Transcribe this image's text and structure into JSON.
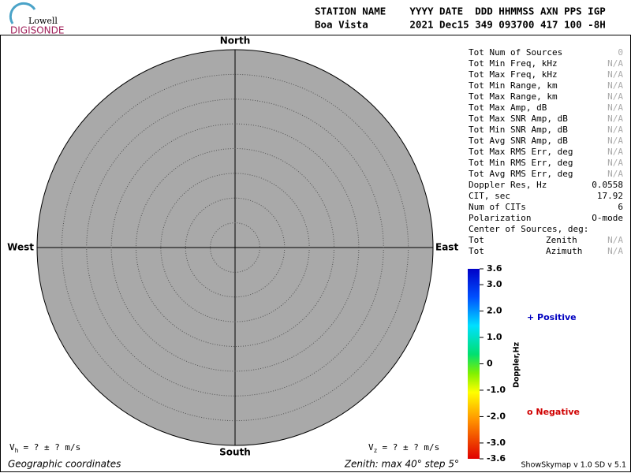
{
  "logo": {
    "top": "Lowell",
    "bottom": "DIGISONDE"
  },
  "header": {
    "line1": "STATION NAME    YYYY DATE  DDD HHMMSS AXN PPS IGP",
    "line2": "Boa Vista       2021 Dec15 349 093700 417 100 -8H"
  },
  "directions": {
    "north": "North",
    "south": "South",
    "west": "West",
    "east": "East"
  },
  "stats": [
    [
      "Tot Num of Sources",
      "0"
    ],
    [
      "Tot Min Freq, kHz",
      "N/A"
    ],
    [
      "Tot Max Freq, kHz",
      "N/A"
    ],
    [
      "Tot Min Range, km",
      "N/A"
    ],
    [
      "Tot Max Range, km",
      "N/A"
    ],
    [
      "Tot Max Amp, dB",
      "N/A"
    ],
    [
      "Tot Max SNR Amp, dB",
      "N/A"
    ],
    [
      "Tot Min SNR Amp, dB",
      "N/A"
    ],
    [
      "Tot Avg SNR Amp, dB",
      "N/A"
    ],
    [
      "Tot Max RMS Err, deg",
      "N/A"
    ],
    [
      "Tot Min RMS Err, deg",
      "N/A"
    ],
    [
      "Tot Avg RMS Err, deg",
      "N/A"
    ],
    [
      "Doppler Res, Hz",
      "0.0558"
    ],
    [
      "CIT, sec",
      "17.92"
    ],
    [
      "Num of CITs",
      "6"
    ],
    [
      "Polarization",
      "O-mode"
    ]
  ],
  "center": {
    "title": "Center of Sources, deg:",
    "rows": [
      [
        "Tot",
        "Zenith",
        "N/A"
      ],
      [
        "Tot",
        "Azimuth",
        "N/A"
      ]
    ]
  },
  "colorbar": {
    "label": "Doppler,Hz",
    "range": [
      -3.6,
      3.6
    ],
    "ticks": [
      3.6,
      {
        "value": 3,
        "label": "3.0"
      },
      {
        "value": 2,
        "label": "2.0"
      },
      {
        "value": 1,
        "label": "1.0"
      },
      0,
      {
        "value": -1,
        "label": "-1.0"
      },
      {
        "value": -2,
        "label": "-2.0"
      },
      {
        "value": -3,
        "label": "-3.0"
      },
      -3.6
    ]
  },
  "legend": {
    "positive": "+ Positive",
    "negative": "o Negative"
  },
  "vh": {
    "symbol": "V",
    "sub": "h",
    "text": "=  ? ±  ? m/s"
  },
  "vz": {
    "symbol": "V",
    "sub": "z",
    "text": "=  ? ±  ? m/s"
  },
  "footer": {
    "left": "Geographic coordinates",
    "middle": "Zenith: max 40°  step 5°",
    "right": "ShowSkymap v 1.0  SD v 5.1"
  }
}
